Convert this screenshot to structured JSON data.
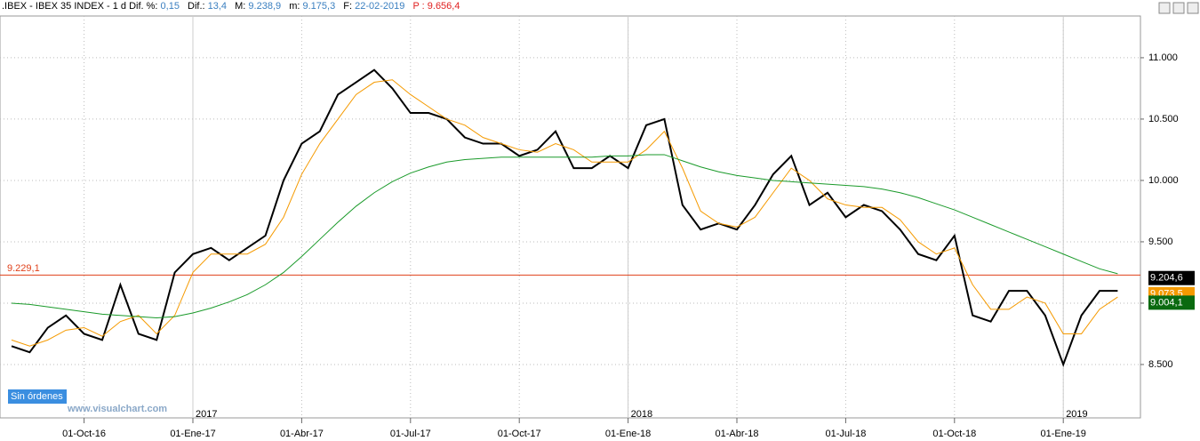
{
  "header": {
    "instrument": ".IBEX - IBEX 35 INDEX - 1 d",
    "fields": [
      {
        "label": "Dif. %:",
        "value": "0,15"
      },
      {
        "label": "Dif.:",
        "value": "13,4"
      },
      {
        "label": "M:",
        "value": "9.238,9"
      },
      {
        "label": "m:",
        "value": "9.175,3"
      },
      {
        "label": "F:",
        "value": "22-02-2019"
      }
    ],
    "extra": {
      "label": "P :",
      "value": "9.656,4"
    }
  },
  "chart_data": {
    "type": "line",
    "categories": [
      null,
      null,
      null,
      null,
      "01-Oct-16",
      null,
      null,
      null,
      null,
      null,
      "01-Ene-17",
      null,
      null,
      null,
      null,
      null,
      "01-Abr-17",
      null,
      null,
      null,
      null,
      null,
      "01-Jul-17",
      null,
      null,
      null,
      null,
      null,
      "01-Oct-17",
      null,
      null,
      null,
      null,
      null,
      "01-Ene-18",
      null,
      null,
      null,
      null,
      null,
      "01-Abr-18",
      null,
      null,
      null,
      null,
      null,
      "01-Jul-18",
      null,
      null,
      null,
      null,
      null,
      "01-Oct-18",
      null,
      null,
      null,
      null,
      null,
      "01-Ene-19",
      null,
      null,
      null
    ],
    "year_labels": [
      {
        "index": 10,
        "label": "2017"
      },
      {
        "index": 34,
        "label": "2018"
      },
      {
        "index": 58,
        "label": "2019"
      }
    ],
    "series": [
      {
        "color": "#000000",
        "values": [
          8650,
          8600,
          8800,
          8900,
          8750,
          8700,
          9150,
          8750,
          8700,
          9250,
          9400,
          9450,
          9350,
          9450,
          9550,
          10000,
          10300,
          10400,
          10700,
          10800,
          10900,
          10750,
          10550,
          10550,
          10500,
          10350,
          10300,
          10300,
          10200,
          10250,
          10400,
          10100,
          10100,
          10200,
          10100,
          10450,
          10500,
          9800,
          9600,
          9650,
          9600,
          9800,
          10050,
          10200,
          9800,
          9900,
          9700,
          9800,
          9750,
          9600,
          9400,
          9350,
          9550,
          8900,
          8850,
          9100,
          9100,
          8900,
          8500,
          8900,
          9100,
          9100
        ]
      },
      {
        "color": "#f59a00",
        "values": [
          8700,
          8650,
          8700,
          8780,
          8800,
          8730,
          8850,
          8900,
          8750,
          8900,
          9250,
          9400,
          9400,
          9400,
          9480,
          9700,
          10050,
          10300,
          10500,
          10700,
          10800,
          10820,
          10700,
          10600,
          10500,
          10450,
          10350,
          10300,
          10250,
          10230,
          10300,
          10250,
          10150,
          10150,
          10150,
          10250,
          10400,
          10100,
          9750,
          9650,
          9620,
          9700,
          9900,
          10100,
          10000,
          9850,
          9800,
          9780,
          9780,
          9680,
          9500,
          9400,
          9450,
          9150,
          8950,
          8950,
          9050,
          9000,
          8750,
          8750,
          8950,
          9050
        ]
      },
      {
        "color": "#1a9a2a",
        "values": [
          9000,
          8990,
          8970,
          8950,
          8930,
          8910,
          8900,
          8890,
          8880,
          8890,
          8920,
          8960,
          9010,
          9070,
          9150,
          9250,
          9380,
          9520,
          9660,
          9790,
          9900,
          9990,
          10060,
          10110,
          10150,
          10170,
          10180,
          10190,
          10190,
          10190,
          10190,
          10190,
          10190,
          10200,
          10200,
          10210,
          10210,
          10160,
          10110,
          10070,
          10040,
          10020,
          10000,
          9990,
          9980,
          9970,
          9960,
          9950,
          9930,
          9900,
          9860,
          9810,
          9760,
          9700,
          9640,
          9580,
          9520,
          9460,
          9400,
          9340,
          9280,
          9240
        ]
      }
    ],
    "ylim": [
      8065,
      11340
    ],
    "yticks": [
      {
        "value": 8500,
        "label": "8.500"
      },
      {
        "value": 9000,
        "label": "9.000"
      },
      {
        "value": 9500,
        "label": "9.500"
      },
      {
        "value": 10000,
        "label": "10.000"
      },
      {
        "value": 10500,
        "label": "10.500"
      },
      {
        "value": 11000,
        "label": "11.000"
      }
    ],
    "reference_line": {
      "value": 9229.1,
      "label": "9.229,1",
      "color": "#e0401a"
    },
    "price_tags": [
      {
        "value": 9204.6,
        "label": "9.204,6",
        "color": "#000000"
      },
      {
        "value": 9073.5,
        "label": "9.073,5",
        "color": "#f59a00"
      },
      {
        "value": 9004.1,
        "label": "9.004,1",
        "color": "#0a6a10"
      }
    ],
    "grid": true
  },
  "overlays": {
    "status": "Sin órdenes",
    "watermark": "www.visualchart.com"
  }
}
